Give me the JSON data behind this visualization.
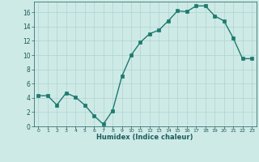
{
  "x": [
    0,
    1,
    2,
    3,
    4,
    5,
    6,
    7,
    8,
    9,
    10,
    11,
    12,
    13,
    14,
    15,
    16,
    17,
    18,
    19,
    20,
    21,
    22,
    23
  ],
  "y": [
    4.3,
    4.3,
    3.0,
    4.7,
    4.1,
    3.0,
    1.5,
    0.3,
    2.2,
    7.0,
    10.0,
    11.8,
    13.0,
    13.5,
    14.8,
    16.2,
    16.1,
    16.9,
    16.9,
    15.5,
    14.8,
    12.4,
    9.5,
    9.5
  ],
  "xlabel": "Humidex (Indice chaleur)",
  "xlim": [
    -0.5,
    23.5
  ],
  "ylim": [
    0,
    17.5
  ],
  "yticks": [
    0,
    2,
    4,
    6,
    8,
    10,
    12,
    14,
    16
  ],
  "xticks": [
    0,
    1,
    2,
    3,
    4,
    5,
    6,
    7,
    8,
    9,
    10,
    11,
    12,
    13,
    14,
    15,
    16,
    17,
    18,
    19,
    20,
    21,
    22,
    23
  ],
  "line_color": "#1e7a6e",
  "marker_color": "#1e7a6e",
  "bg_color": "#ceeae7",
  "grid_color": "#aed4d0",
  "tick_label_color": "#1a5c5a",
  "xlabel_color": "#1a5c5a",
  "fig_bg_color": "#ceeae7"
}
